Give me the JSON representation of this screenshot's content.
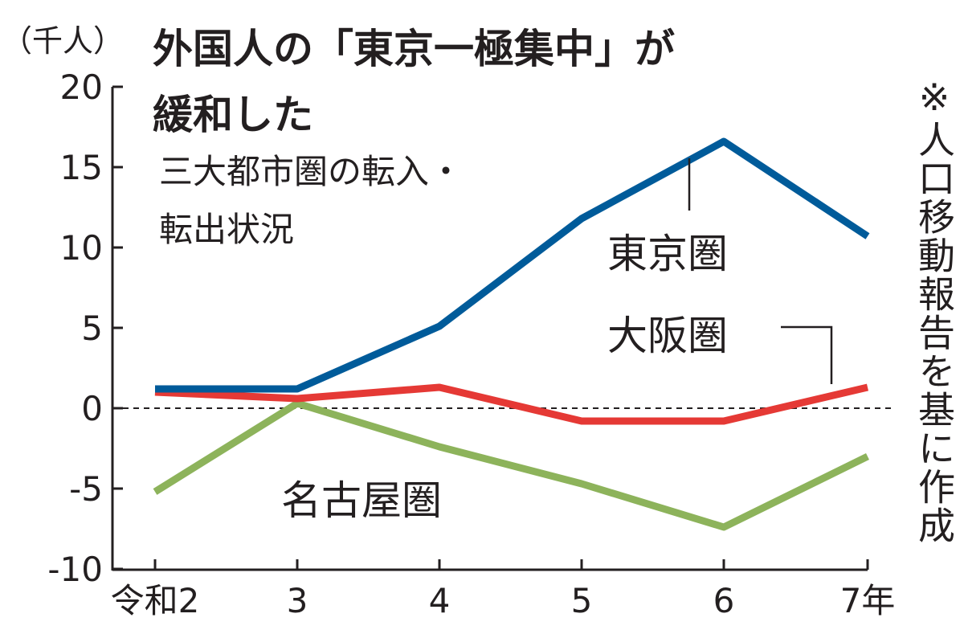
{
  "chart_data": {
    "type": "line",
    "title_line1": "外国人の「東京一極集中」が",
    "title_line2": "緩和した",
    "subtitle_line1": "三大都市圏の転入・",
    "subtitle_line2": "転出状況",
    "yunit": "（千人）",
    "note": "※人口移動報告を基に作成",
    "categories": [
      "令和2",
      "3",
      "4",
      "5",
      "6",
      "7年"
    ],
    "ylim": [
      -10,
      20
    ],
    "yticks": [
      20,
      15,
      10,
      5,
      0,
      -5,
      -10
    ],
    "ytick_labels": [
      "20",
      "15",
      "10",
      "5",
      "0",
      "-5",
      "-10"
    ],
    "series": [
      {
        "name": "東京圏",
        "color": "#005b9a",
        "values": [
          1.2,
          1.2,
          5.1,
          11.8,
          16.6,
          10.7
        ]
      },
      {
        "name": "大阪圏",
        "color": "#e53935",
        "values": [
          1.0,
          0.6,
          1.3,
          -0.8,
          -0.8,
          1.3
        ]
      },
      {
        "name": "名古屋圏",
        "color": "#8db35b",
        "values": [
          -5.2,
          0.3,
          -2.4,
          -4.7,
          -7.4,
          -3.0
        ]
      }
    ],
    "zero_line": "dashed"
  }
}
